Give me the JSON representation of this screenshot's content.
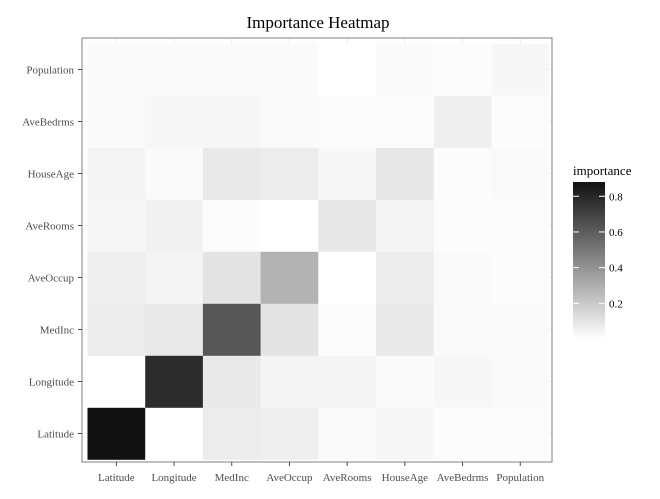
{
  "chart_data": {
    "type": "heatmap",
    "title": "Importance Heatmap",
    "xlabel": "",
    "ylabel": "",
    "x_categories": [
      "Latitude",
      "Longitude",
      "MedInc",
      "AveOccup",
      "AveRooms",
      "HouseAge",
      "AveBedrms",
      "Population"
    ],
    "y_categories": [
      "Latitude",
      "Longitude",
      "MedInc",
      "AveOccup",
      "AveRooms",
      "HouseAge",
      "AveBedrms",
      "Population"
    ],
    "values": [
      [
        0.88,
        0.0,
        0.07,
        0.06,
        0.02,
        0.03,
        0.01,
        0.01
      ],
      [
        0.0,
        0.78,
        0.08,
        0.04,
        0.04,
        0.02,
        0.03,
        0.02
      ],
      [
        0.07,
        0.08,
        0.62,
        0.1,
        0.01,
        0.08,
        0.02,
        0.02
      ],
      [
        0.06,
        0.04,
        0.1,
        0.28,
        0.0,
        0.07,
        0.02,
        0.01
      ],
      [
        0.03,
        0.05,
        0.01,
        0.0,
        0.09,
        0.04,
        0.01,
        0.01
      ],
      [
        0.04,
        0.02,
        0.08,
        0.07,
        0.03,
        0.09,
        0.01,
        0.02
      ],
      [
        0.02,
        0.03,
        0.03,
        0.02,
        0.01,
        0.01,
        0.06,
        0.01
      ],
      [
        0.02,
        0.02,
        0.02,
        0.02,
        0.0,
        0.02,
        0.01,
        0.03
      ]
    ],
    "colorscale": {
      "low": "#ffffff",
      "high": "#111111"
    },
    "legend": {
      "title": "importance",
      "ticks": [
        "0.2",
        "0.4",
        "0.6",
        "0.8"
      ],
      "tick_values": [
        0.2,
        0.4,
        0.6,
        0.8
      ],
      "range": [
        0,
        0.88
      ],
      "position": "right"
    },
    "grid": true
  }
}
